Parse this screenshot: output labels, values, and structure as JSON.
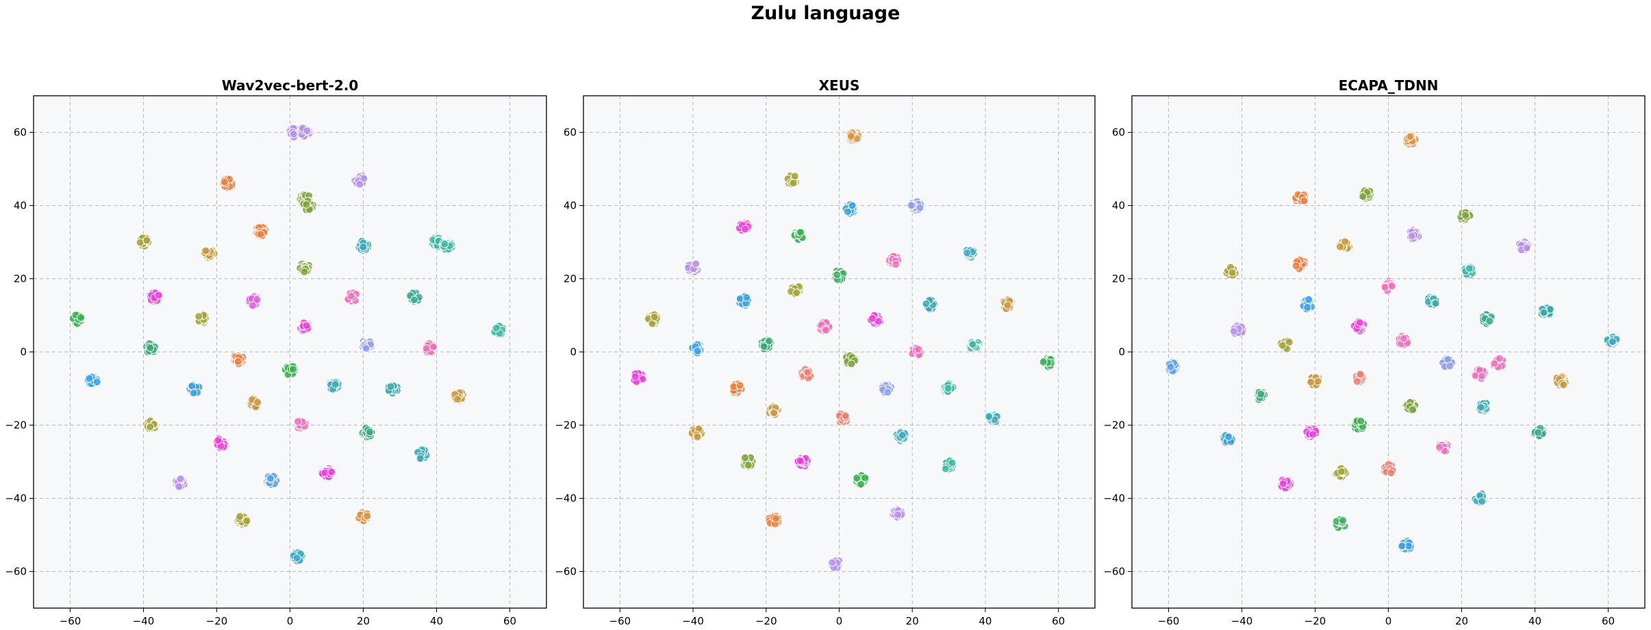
{
  "figure": {
    "title": "Zulu language"
  },
  "chart_data": [
    {
      "type": "scatter",
      "title": "Wav2vec-bert-2.0",
      "xlabel": "",
      "ylabel": "",
      "xlim": [
        -70,
        70
      ],
      "ylim": [
        -70,
        70
      ],
      "xticks": [
        -60,
        -40,
        -20,
        0,
        20,
        40,
        60
      ],
      "yticks": [
        -60,
        -40,
        -20,
        0,
        20,
        40,
        60
      ],
      "grid": true,
      "clusters": [
        {
          "x": 1,
          "y": 60,
          "color": "#b48ef0"
        },
        {
          "x": 4,
          "y": 60,
          "color": "#b48ef0"
        },
        {
          "x": -17,
          "y": 46,
          "color": "#f07a3a"
        },
        {
          "x": 19,
          "y": 47,
          "color": "#b48ef0"
        },
        {
          "x": 4,
          "y": 42,
          "color": "#7aa33a"
        },
        {
          "x": 5,
          "y": 40,
          "color": "#7aa33a"
        },
        {
          "x": -8,
          "y": 33,
          "color": "#f07a3a"
        },
        {
          "x": -40,
          "y": 30,
          "color": "#a3a33a"
        },
        {
          "x": -22,
          "y": 27,
          "color": "#c8963c"
        },
        {
          "x": 20,
          "y": 29,
          "color": "#3aa8b8"
        },
        {
          "x": 40,
          "y": 30,
          "color": "#3ab8a3"
        },
        {
          "x": 43,
          "y": 29,
          "color": "#3ab8a3"
        },
        {
          "x": 4,
          "y": 23,
          "color": "#7aa33a"
        },
        {
          "x": -37,
          "y": 15,
          "color": "#f03ae0"
        },
        {
          "x": 17,
          "y": 15,
          "color": "#f06eb8"
        },
        {
          "x": 34,
          "y": 15,
          "color": "#3aa88e"
        },
        {
          "x": -58,
          "y": 9,
          "color": "#3ab04f"
        },
        {
          "x": -24,
          "y": 9,
          "color": "#a3a33a"
        },
        {
          "x": -10,
          "y": 14,
          "color": "#e05ce0"
        },
        {
          "x": 4,
          "y": 7,
          "color": "#f03ae0"
        },
        {
          "x": 57,
          "y": 6,
          "color": "#3ab8a3"
        },
        {
          "x": 21,
          "y": 2,
          "color": "#8e9ef0"
        },
        {
          "x": 38,
          "y": 1,
          "color": "#f06eb8"
        },
        {
          "x": -38,
          "y": 1,
          "color": "#3aa874"
        },
        {
          "x": -14,
          "y": -2,
          "color": "#f07a3a"
        },
        {
          "x": 0,
          "y": -5,
          "color": "#3ab04f"
        },
        {
          "x": -54,
          "y": -8,
          "color": "#3aa0f0"
        },
        {
          "x": -26,
          "y": -10,
          "color": "#3aa0e0"
        },
        {
          "x": 12,
          "y": -9,
          "color": "#3aa8b8"
        },
        {
          "x": 28,
          "y": -10,
          "color": "#3aa8a8"
        },
        {
          "x": 46,
          "y": -12,
          "color": "#c8963c"
        },
        {
          "x": -10,
          "y": -14,
          "color": "#c8963c"
        },
        {
          "x": 3,
          "y": -20,
          "color": "#f06eb8"
        },
        {
          "x": -38,
          "y": -20,
          "color": "#a3a33a"
        },
        {
          "x": 21,
          "y": -22,
          "color": "#3aa874"
        },
        {
          "x": -19,
          "y": -25,
          "color": "#f03ae0"
        },
        {
          "x": 36,
          "y": -28,
          "color": "#3aa8b8"
        },
        {
          "x": 10,
          "y": -33,
          "color": "#f03ae0"
        },
        {
          "x": -5,
          "y": -35,
          "color": "#5b9ef0"
        },
        {
          "x": -30,
          "y": -36,
          "color": "#b48ef0"
        },
        {
          "x": 20,
          "y": -45,
          "color": "#e0903a"
        },
        {
          "x": -13,
          "y": -46,
          "color": "#a3a33a"
        },
        {
          "x": 2,
          "y": -56,
          "color": "#3aa8c8"
        }
      ]
    },
    {
      "type": "scatter",
      "title": "XEUS",
      "xlabel": "",
      "ylabel": "",
      "xlim": [
        -70,
        70
      ],
      "ylim": [
        -70,
        70
      ],
      "xticks": [
        -60,
        -40,
        -20,
        0,
        20,
        40,
        60
      ],
      "yticks": [
        -60,
        -40,
        -20,
        0,
        20,
        40,
        60
      ],
      "grid": true,
      "clusters": [
        {
          "x": 4,
          "y": 59,
          "color": "#e0903a"
        },
        {
          "x": -13,
          "y": 47,
          "color": "#a3a33a"
        },
        {
          "x": 3,
          "y": 39,
          "color": "#3aa0e0"
        },
        {
          "x": 21,
          "y": 40,
          "color": "#8e9ef0"
        },
        {
          "x": -26,
          "y": 34,
          "color": "#f03ae0"
        },
        {
          "x": -11,
          "y": 32,
          "color": "#3ab04f"
        },
        {
          "x": 36,
          "y": 27,
          "color": "#3aa8c8"
        },
        {
          "x": 15,
          "y": 25,
          "color": "#f06eb8"
        },
        {
          "x": -40,
          "y": 23,
          "color": "#b48ef0"
        },
        {
          "x": 0,
          "y": 21,
          "color": "#3ab05f"
        },
        {
          "x": -12,
          "y": 17,
          "color": "#a3a33a"
        },
        {
          "x": -26,
          "y": 14,
          "color": "#3aa0e0"
        },
        {
          "x": 25,
          "y": 13,
          "color": "#3aa8b8"
        },
        {
          "x": 46,
          "y": 13,
          "color": "#c8963c"
        },
        {
          "x": -51,
          "y": 9,
          "color": "#a3a33a"
        },
        {
          "x": 10,
          "y": 9,
          "color": "#f03ae0"
        },
        {
          "x": -4,
          "y": 7,
          "color": "#f06eb8"
        },
        {
          "x": -20,
          "y": 2,
          "color": "#3aa874"
        },
        {
          "x": 37,
          "y": 2,
          "color": "#3ab8a3"
        },
        {
          "x": -39,
          "y": 1,
          "color": "#3aa0f0"
        },
        {
          "x": 21,
          "y": 0,
          "color": "#f06eb8"
        },
        {
          "x": 57,
          "y": -3,
          "color": "#3ab05f"
        },
        {
          "x": 3,
          "y": -2,
          "color": "#7aa33a"
        },
        {
          "x": -9,
          "y": -6,
          "color": "#f07a6e"
        },
        {
          "x": -55,
          "y": -7,
          "color": "#f03ae0"
        },
        {
          "x": 13,
          "y": -10,
          "color": "#8e9ef0"
        },
        {
          "x": -28,
          "y": -10,
          "color": "#f07a3a"
        },
        {
          "x": 30,
          "y": -10,
          "color": "#3ab8a3"
        },
        {
          "x": -18,
          "y": -16,
          "color": "#c8963c"
        },
        {
          "x": 1,
          "y": -18,
          "color": "#f07a6e"
        },
        {
          "x": 42,
          "y": -18,
          "color": "#3aa8b8"
        },
        {
          "x": -39,
          "y": -22,
          "color": "#c8963c"
        },
        {
          "x": 17,
          "y": -23,
          "color": "#3aa8b8"
        },
        {
          "x": -10,
          "y": -30,
          "color": "#f03ae0"
        },
        {
          "x": -25,
          "y": -30,
          "color": "#7aa33a"
        },
        {
          "x": 30,
          "y": -31,
          "color": "#3ab8a3"
        },
        {
          "x": 6,
          "y": -35,
          "color": "#3ab04f"
        },
        {
          "x": 16,
          "y": -44,
          "color": "#b48ef0"
        },
        {
          "x": -18,
          "y": -46,
          "color": "#f07a3a"
        },
        {
          "x": -1,
          "y": -58,
          "color": "#b48ef0"
        }
      ]
    },
    {
      "type": "scatter",
      "title": "ECAPA_TDNN",
      "xlabel": "",
      "ylabel": "",
      "xlim": [
        -70,
        70
      ],
      "ylim": [
        -70,
        70
      ],
      "xticks": [
        -60,
        -40,
        -20,
        0,
        20,
        40,
        60
      ],
      "yticks": [
        -60,
        -40,
        -20,
        0,
        20,
        40,
        60
      ],
      "grid": true,
      "clusters": [
        {
          "x": 6,
          "y": 58,
          "color": "#e0903a"
        },
        {
          "x": -6,
          "y": 43,
          "color": "#7aa33a"
        },
        {
          "x": -24,
          "y": 42,
          "color": "#f07a3a"
        },
        {
          "x": 21,
          "y": 37,
          "color": "#7aa33a"
        },
        {
          "x": 7,
          "y": 32,
          "color": "#b48ef0"
        },
        {
          "x": 37,
          "y": 29,
          "color": "#b48ef0"
        },
        {
          "x": -12,
          "y": 29,
          "color": "#c8963c"
        },
        {
          "x": -24,
          "y": 24,
          "color": "#f07a3a"
        },
        {
          "x": -43,
          "y": 22,
          "color": "#a3a33a"
        },
        {
          "x": 22,
          "y": 22,
          "color": "#3ab8a3"
        },
        {
          "x": 0,
          "y": 18,
          "color": "#f06eb8"
        },
        {
          "x": 12,
          "y": 14,
          "color": "#3aa8a8"
        },
        {
          "x": -22,
          "y": 13,
          "color": "#3aa0f0"
        },
        {
          "x": 43,
          "y": 11,
          "color": "#3aa8a8"
        },
        {
          "x": 27,
          "y": 9,
          "color": "#3aa88e"
        },
        {
          "x": -8,
          "y": 7,
          "color": "#f03ae0"
        },
        {
          "x": -41,
          "y": 6,
          "color": "#b48ef0"
        },
        {
          "x": 61,
          "y": 3,
          "color": "#3aa8c8"
        },
        {
          "x": 4,
          "y": 3,
          "color": "#f06eb8"
        },
        {
          "x": -28,
          "y": 2,
          "color": "#a3a33a"
        },
        {
          "x": 16,
          "y": -3,
          "color": "#8e9ef0"
        },
        {
          "x": 30,
          "y": -3,
          "color": "#f06eb8"
        },
        {
          "x": -59,
          "y": -4,
          "color": "#5b9ef0"
        },
        {
          "x": 25,
          "y": -6,
          "color": "#f06eb8"
        },
        {
          "x": -8,
          "y": -7,
          "color": "#f07a6e"
        },
        {
          "x": -20,
          "y": -8,
          "color": "#c8963c"
        },
        {
          "x": 47,
          "y": -8,
          "color": "#c8963c"
        },
        {
          "x": -35,
          "y": -12,
          "color": "#3aa874"
        },
        {
          "x": 26,
          "y": -15,
          "color": "#3aa8b8"
        },
        {
          "x": 6,
          "y": -15,
          "color": "#7aa33a"
        },
        {
          "x": -8,
          "y": -20,
          "color": "#3ab04f"
        },
        {
          "x": 41,
          "y": -22,
          "color": "#3aa88e"
        },
        {
          "x": -21,
          "y": -22,
          "color": "#f03ae0"
        },
        {
          "x": -44,
          "y": -24,
          "color": "#3aa0e0"
        },
        {
          "x": 15,
          "y": -26,
          "color": "#f06eb8"
        },
        {
          "x": 0,
          "y": -32,
          "color": "#f07a6e"
        },
        {
          "x": -13,
          "y": -33,
          "color": "#a3a33a"
        },
        {
          "x": -28,
          "y": -36,
          "color": "#f03ae0"
        },
        {
          "x": 25,
          "y": -40,
          "color": "#3aa8b8"
        },
        {
          "x": -13,
          "y": -47,
          "color": "#3ab05f"
        },
        {
          "x": 5,
          "y": -53,
          "color": "#3aa0e0"
        }
      ]
    }
  ]
}
